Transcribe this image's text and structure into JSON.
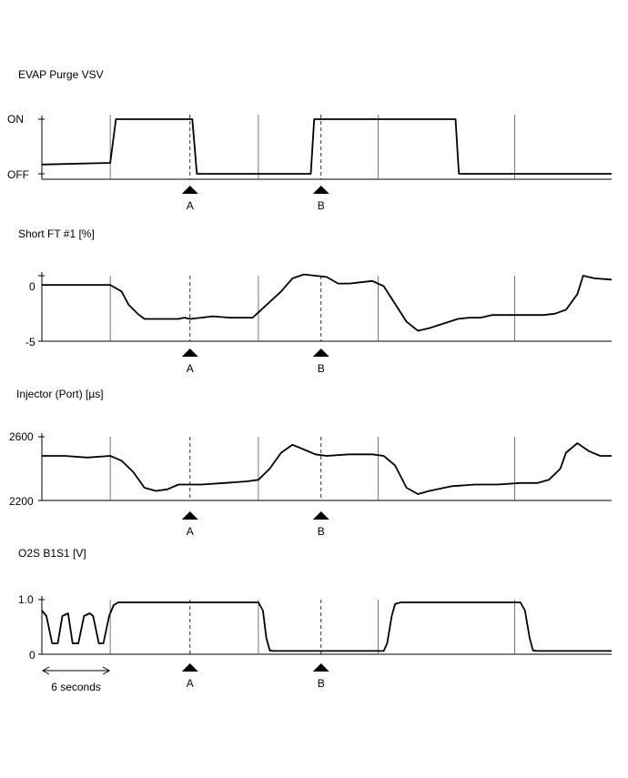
{
  "chart_data": [
    {
      "type": "line",
      "title": "EVAP Purge VSV",
      "y_tick_labels": [
        "ON",
        "OFF"
      ],
      "y_range": [
        "OFF",
        "ON"
      ],
      "x_range_seconds": [
        0,
        50
      ],
      "series": [
        {
          "x": [
            0,
            6.0,
            6.5,
            13.2,
            13.6,
            23.6,
            23.9,
            36.3,
            36.6,
            50
          ],
          "y": [
            0.17,
            0.2,
            1.0,
            1.0,
            0.0,
            0.0,
            1.0,
            1.0,
            0.0,
            0.0
          ]
        }
      ]
    },
    {
      "type": "line",
      "title": "Short FT #1 [%]",
      "y_tick_labels": [
        "0",
        "-5"
      ],
      "y_range": [
        -5,
        0.8
      ],
      "x_range_seconds": [
        0,
        50
      ],
      "series": [
        {
          "x": [
            0,
            6.0,
            7.0,
            7.6,
            8.4,
            9.0,
            10.0,
            12.0,
            12.5,
            13.0,
            14.0,
            15.0,
            16.5,
            17.5,
            18.5,
            19.0,
            21.0,
            22.0,
            23.0,
            24.0,
            25.0,
            26.0,
            27.0,
            28.0,
            29.0,
            30.0,
            32.0,
            33.0,
            34.0,
            36.5,
            37.5,
            38.5,
            39.5,
            41.0,
            44.0,
            45.0,
            46.0,
            47.0,
            47.5,
            48.5,
            50.0
          ],
          "y": [
            -0.7,
            -0.7,
            -1.2,
            -2.2,
            -2.9,
            -3.3,
            -3.3,
            -3.3,
            -3.2,
            -3.3,
            -3.2,
            -3.1,
            -3.2,
            -3.2,
            -3.2,
            -2.8,
            -1.2,
            -0.2,
            0.1,
            0.0,
            -0.1,
            -0.6,
            -0.6,
            -0.5,
            -0.4,
            -0.8,
            -3.5,
            -4.2,
            -4.0,
            -3.3,
            -3.2,
            -3.2,
            -3.0,
            -3.0,
            -3.0,
            -2.9,
            -2.6,
            -1.4,
            0.0,
            -0.2,
            -0.3
          ]
        }
      ]
    },
    {
      "type": "line",
      "title": "Injector (Port) [µs]",
      "y_tick_labels": [
        "2600",
        "2200"
      ],
      "y_range": [
        2200,
        2600
      ],
      "x_range_seconds": [
        0,
        50
      ],
      "series": [
        {
          "x": [
            0,
            2.0,
            4.0,
            6.0,
            7.0,
            8.0,
            9.0,
            10.0,
            11.0,
            12.0,
            14.0,
            16.0,
            18.0,
            19.0,
            20.0,
            21.0,
            22.0,
            23.0,
            24.0,
            25.0,
            27.0,
            29.0,
            30.0,
            31.0,
            32.0,
            33.0,
            34.0,
            36.0,
            38.0,
            40.0,
            42.0,
            43.5,
            44.5,
            45.5,
            46.0,
            47.0,
            48.0,
            49.0,
            50.0
          ],
          "y": [
            2480,
            2480,
            2470,
            2480,
            2450,
            2380,
            2280,
            2260,
            2270,
            2300,
            2300,
            2310,
            2320,
            2330,
            2400,
            2500,
            2550,
            2520,
            2490,
            2480,
            2490,
            2490,
            2480,
            2420,
            2280,
            2240,
            2260,
            2290,
            2300,
            2300,
            2310,
            2310,
            2330,
            2400,
            2500,
            2560,
            2510,
            2480,
            2480
          ]
        }
      ]
    },
    {
      "type": "line",
      "title": "O2S B1S1 [V]",
      "y_tick_labels": [
        "1.0",
        "0"
      ],
      "y_range": [
        0,
        1.0
      ],
      "x_range_seconds": [
        0,
        50
      ],
      "series": [
        {
          "x": [
            0,
            0.4,
            0.9,
            1.4,
            1.8,
            2.3,
            2.7,
            3.2,
            3.7,
            4.2,
            4.5,
            5.0,
            5.4,
            5.9,
            6.3,
            6.7,
            7.0,
            8.0,
            12.0,
            16.0,
            19.0,
            19.4,
            19.7,
            20.0,
            20.3,
            22.0,
            26.0,
            30.0,
            30.3,
            30.7,
            31.0,
            31.5,
            33.0,
            36.0,
            38.0,
            40.0,
            42.0,
            42.4,
            42.8,
            43.1,
            43.5,
            46.0,
            50.0
          ],
          "y": [
            0.8,
            0.7,
            0.2,
            0.2,
            0.7,
            0.75,
            0.2,
            0.2,
            0.7,
            0.75,
            0.7,
            0.2,
            0.2,
            0.7,
            0.9,
            0.95,
            0.95,
            0.95,
            0.95,
            0.95,
            0.95,
            0.8,
            0.3,
            0.07,
            0.06,
            0.06,
            0.06,
            0.06,
            0.2,
            0.7,
            0.92,
            0.95,
            0.95,
            0.95,
            0.95,
            0.95,
            0.95,
            0.8,
            0.3,
            0.07,
            0.06,
            0.06,
            0.06
          ]
        }
      ]
    }
  ],
  "markers": [
    {
      "label": "A",
      "x": 13.0
    },
    {
      "label": "B",
      "x": 24.5
    }
  ],
  "cycle_lines_seconds": [
    6.0,
    19.0,
    29.5,
    41.5
  ],
  "time_span": {
    "label": "6 seconds",
    "from": 0,
    "to": 6
  }
}
